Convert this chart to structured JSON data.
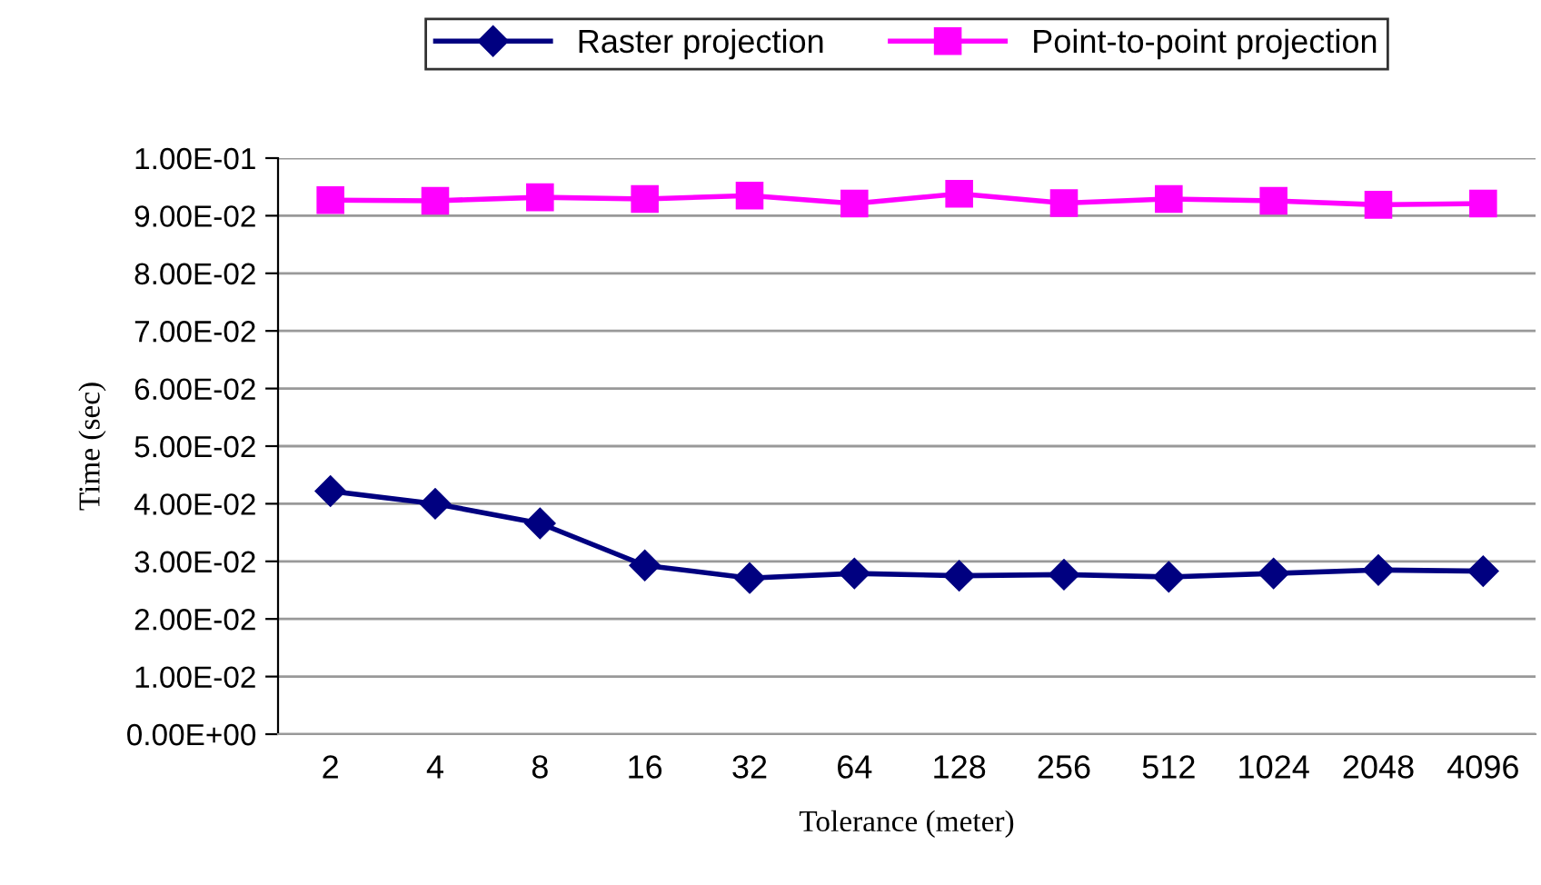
{
  "chart_data": {
    "type": "line",
    "xlabel": "Tolerance (meter)",
    "ylabel": "Time (sec)",
    "categories": [
      "2",
      "4",
      "8",
      "16",
      "32",
      "64",
      "128",
      "256",
      "512",
      "1024",
      "2048",
      "4096"
    ],
    "series": [
      {
        "name": "Raster projection",
        "color": "#000080",
        "marker": "diamond",
        "values": [
          0.0422,
          0.04,
          0.0366,
          0.0293,
          0.0271,
          0.0279,
          0.0275,
          0.0277,
          0.0273,
          0.0279,
          0.0285,
          0.0283
        ]
      },
      {
        "name": "Point-to-point projection",
        "color": "#ff00ff",
        "marker": "square",
        "values": [
          0.0927,
          0.0926,
          0.0932,
          0.0929,
          0.0935,
          0.0921,
          0.0938,
          0.0922,
          0.0929,
          0.0926,
          0.0919,
          0.0921
        ]
      }
    ],
    "ylim": [
      0,
      0.1
    ],
    "yticks": [
      {
        "value": 0,
        "label": "0.00E+00"
      },
      {
        "value": 0.01,
        "label": "1.00E-02"
      },
      {
        "value": 0.02,
        "label": "2.00E-02"
      },
      {
        "value": 0.03,
        "label": "3.00E-02"
      },
      {
        "value": 0.04,
        "label": "4.00E-02"
      },
      {
        "value": 0.05,
        "label": "5.00E-02"
      },
      {
        "value": 0.06,
        "label": "6.00E-02"
      },
      {
        "value": 0.07,
        "label": "7.00E-02"
      },
      {
        "value": 0.08,
        "label": "8.00E-02"
      },
      {
        "value": 0.09,
        "label": "9.00E-02"
      },
      {
        "value": 0.1,
        "label": "1.00E-01"
      }
    ],
    "grid": "y",
    "legend": "top",
    "line_style": "solid"
  }
}
